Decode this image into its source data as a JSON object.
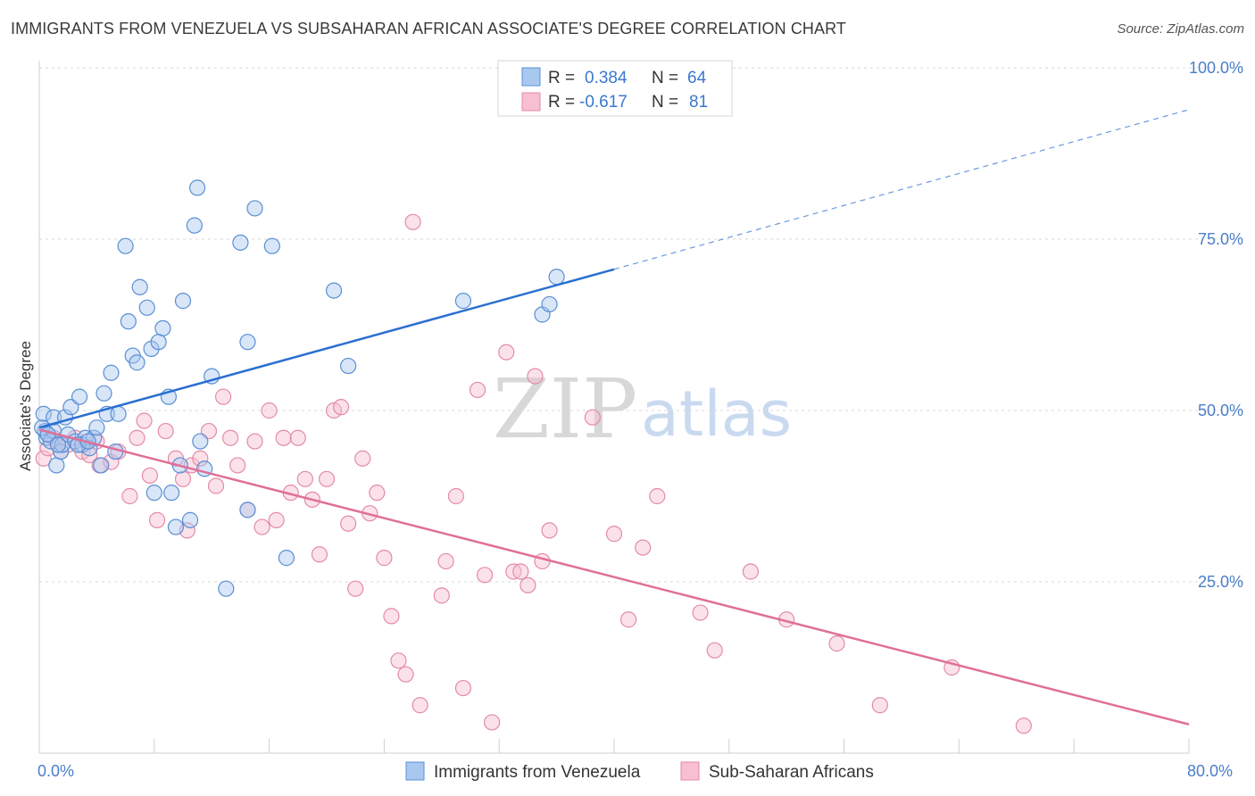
{
  "header": {
    "title": "IMMIGRANTS FROM VENEZUELA VS SUBSAHARAN AFRICAN ASSOCIATE'S DEGREE CORRELATION CHART",
    "source": "Source: ZipAtlas.com"
  },
  "legend_top": {
    "r_label": "R =",
    "n_label": "N =",
    "series1": {
      "r": "0.384",
      "n": "64"
    },
    "series2": {
      "r": "-0.617",
      "n": "81"
    }
  },
  "legend_bottom": {
    "series1": "Immigrants from Venezuela",
    "series2": "Sub-Saharan Africans"
  },
  "watermark": {
    "zip": "ZIP",
    "atlas": "atlas"
  },
  "colors": {
    "blue_fill": "#a9c8ef",
    "blue_stroke": "#5b8fd4",
    "blue_line": "#2a6fd1",
    "pink_fill": "#f7bfd1",
    "pink_stroke": "#e48aa9",
    "pink_line": "#e07098",
    "grid": "#d9d9d9",
    "tick_text": "#4a7fc9"
  },
  "chart_data": {
    "type": "scatter",
    "title": "IMMIGRANTS FROM VENEZUELA VS SUBSAHARAN AFRICAN ASSOCIATE'S DEGREE CORRELATION CHART",
    "xlabel": "",
    "ylabel": "Associate's Degree",
    "xlim": [
      0,
      80
    ],
    "ylim": [
      0,
      100
    ],
    "x_tick_labels": [
      "0.0%",
      "80.0%"
    ],
    "y_ticks": [
      25,
      50,
      75,
      100
    ],
    "y_tick_labels": [
      "25.0%",
      "50.0%",
      "75.0%",
      "100.0%"
    ],
    "grid": true,
    "legend": "top-center",
    "series": [
      {
        "name": "Immigrants from Venezuela",
        "r": 0.384,
        "n": 64,
        "trend": {
          "x0": 0,
          "y0": 47.5,
          "x1": 40,
          "y1": 70.6,
          "dash_to_x": 80,
          "dash_to_y": 93.9
        },
        "points": [
          [
            0.3,
            49.5
          ],
          [
            0.4,
            47.0
          ],
          [
            0.5,
            46.0
          ],
          [
            0.8,
            45.5
          ],
          [
            1.0,
            47.0
          ],
          [
            1.0,
            49.0
          ],
          [
            1.2,
            42.0
          ],
          [
            1.5,
            44.0
          ],
          [
            1.6,
            45.0
          ],
          [
            1.8,
            49.0
          ],
          [
            2.0,
            46.5
          ],
          [
            2.2,
            50.5
          ],
          [
            2.5,
            45.5
          ],
          [
            2.8,
            52.0
          ],
          [
            3.0,
            45.0
          ],
          [
            3.2,
            46.0
          ],
          [
            3.5,
            44.5
          ],
          [
            3.8,
            46.0
          ],
          [
            4.0,
            47.5
          ],
          [
            4.3,
            42.0
          ],
          [
            4.5,
            52.5
          ],
          [
            4.7,
            49.5
          ],
          [
            5.0,
            55.5
          ],
          [
            5.3,
            44.0
          ],
          [
            5.5,
            49.5
          ],
          [
            6.0,
            74.0
          ],
          [
            6.2,
            63.0
          ],
          [
            6.5,
            58.0
          ],
          [
            6.8,
            57.0
          ],
          [
            7.0,
            68.0
          ],
          [
            7.5,
            65.0
          ],
          [
            7.8,
            59.0
          ],
          [
            8.0,
            38.0
          ],
          [
            8.3,
            60.0
          ],
          [
            8.6,
            62.0
          ],
          [
            9.0,
            52.0
          ],
          [
            9.2,
            38.0
          ],
          [
            9.5,
            33.0
          ],
          [
            9.8,
            42.0
          ],
          [
            10.0,
            66.0
          ],
          [
            10.5,
            34.0
          ],
          [
            10.8,
            77.0
          ],
          [
            11.0,
            82.5
          ],
          [
            11.2,
            45.5
          ],
          [
            11.5,
            41.5
          ],
          [
            12.0,
            55.0
          ],
          [
            13.0,
            24.0
          ],
          [
            14.0,
            74.5
          ],
          [
            14.5,
            60.0
          ],
          [
            14.5,
            35.5
          ],
          [
            15.0,
            79.5
          ],
          [
            16.2,
            74.0
          ],
          [
            17.2,
            28.5
          ],
          [
            20.5,
            67.5
          ],
          [
            21.5,
            56.5
          ],
          [
            29.5,
            66.0
          ],
          [
            35.0,
            64.0
          ],
          [
            35.5,
            65.5
          ],
          [
            36.0,
            69.5
          ],
          [
            0.2,
            47.5
          ],
          [
            0.6,
            46.5
          ],
          [
            1.3,
            45.0
          ],
          [
            2.7,
            45.0
          ],
          [
            3.4,
            45.5
          ]
        ]
      },
      {
        "name": "Sub-Saharan Africans",
        "r": -0.617,
        "n": 81,
        "trend": {
          "x0": 0,
          "y0": 47.2,
          "x1": 80,
          "y1": 4.2
        },
        "points": [
          [
            0.3,
            43.0
          ],
          [
            0.6,
            44.5
          ],
          [
            1.0,
            46.0
          ],
          [
            1.3,
            45.5
          ],
          [
            1.5,
            44.0
          ],
          [
            2.0,
            45.0
          ],
          [
            2.5,
            46.0
          ],
          [
            3.0,
            44.0
          ],
          [
            3.5,
            43.5
          ],
          [
            4.0,
            45.5
          ],
          [
            4.2,
            42.0
          ],
          [
            5.0,
            42.5
          ],
          [
            5.5,
            44.0
          ],
          [
            6.3,
            37.5
          ],
          [
            6.8,
            46.0
          ],
          [
            7.3,
            48.5
          ],
          [
            7.7,
            40.5
          ],
          [
            8.2,
            34.0
          ],
          [
            8.8,
            47.0
          ],
          [
            9.5,
            43.0
          ],
          [
            10.0,
            40.0
          ],
          [
            10.3,
            32.5
          ],
          [
            10.6,
            42.0
          ],
          [
            11.2,
            43.0
          ],
          [
            11.8,
            47.0
          ],
          [
            12.3,
            39.0
          ],
          [
            12.8,
            52.0
          ],
          [
            13.3,
            46.0
          ],
          [
            13.8,
            42.0
          ],
          [
            14.5,
            35.5
          ],
          [
            15.0,
            45.5
          ],
          [
            15.5,
            33.0
          ],
          [
            16.0,
            50.0
          ],
          [
            16.5,
            34.0
          ],
          [
            17.0,
            46.0
          ],
          [
            17.5,
            38.0
          ],
          [
            18.0,
            46.0
          ],
          [
            18.5,
            40.0
          ],
          [
            19.0,
            37.0
          ],
          [
            19.5,
            29.0
          ],
          [
            20.0,
            40.0
          ],
          [
            20.5,
            50.0
          ],
          [
            21.0,
            50.5
          ],
          [
            21.5,
            33.5
          ],
          [
            22.0,
            24.0
          ],
          [
            22.5,
            43.0
          ],
          [
            23.0,
            35.0
          ],
          [
            23.5,
            38.0
          ],
          [
            24.0,
            28.5
          ],
          [
            24.5,
            20.0
          ],
          [
            25.0,
            13.5
          ],
          [
            25.5,
            11.5
          ],
          [
            26.0,
            77.5
          ],
          [
            26.5,
            7.0
          ],
          [
            28.0,
            23.0
          ],
          [
            28.3,
            28.0
          ],
          [
            29.0,
            37.5
          ],
          [
            29.5,
            9.5
          ],
          [
            30.5,
            53.0
          ],
          [
            31.0,
            26.0
          ],
          [
            31.5,
            4.5
          ],
          [
            32.5,
            58.5
          ],
          [
            33.0,
            26.5
          ],
          [
            33.5,
            26.5
          ],
          [
            34.0,
            24.5
          ],
          [
            34.5,
            55.0
          ],
          [
            35.0,
            28.0
          ],
          [
            35.5,
            32.5
          ],
          [
            38.5,
            49.0
          ],
          [
            40.0,
            32.0
          ],
          [
            41.0,
            19.5
          ],
          [
            42.0,
            30.0
          ],
          [
            43.0,
            37.5
          ],
          [
            46.0,
            20.5
          ],
          [
            47.0,
            15.0
          ],
          [
            49.5,
            26.5
          ],
          [
            52.0,
            19.5
          ],
          [
            55.5,
            16.0
          ],
          [
            58.5,
            7.0
          ],
          [
            63.5,
            12.5
          ],
          [
            68.5,
            4.0
          ]
        ]
      }
    ]
  }
}
